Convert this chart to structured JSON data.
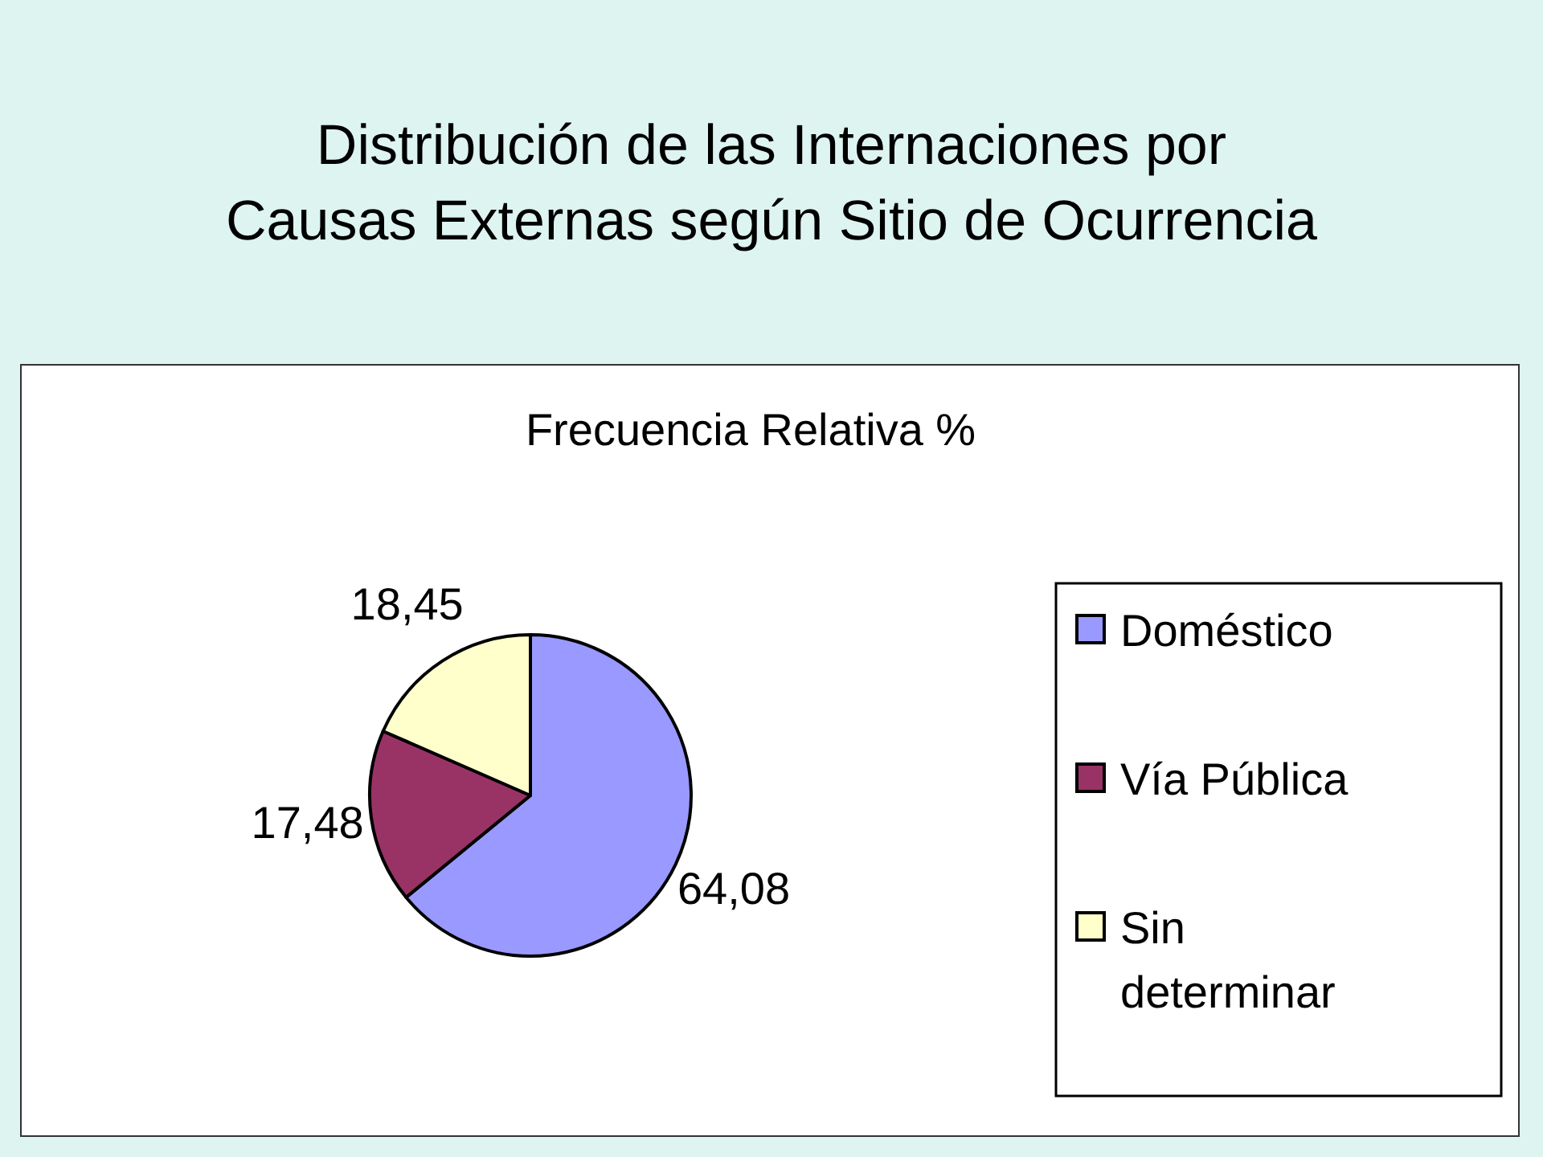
{
  "chart_data": {
    "type": "pie",
    "title": "Distribución de las Internaciones por\nCausas Externas según Sitio de Ocurrencia",
    "subtitle": "Frecuencia Relativa %",
    "categories": [
      "Doméstico",
      "Vía Pública",
      "Sin determinar"
    ],
    "values": [
      64.08,
      17.48,
      18.45
    ],
    "colors": [
      "#9999ff",
      "#993366",
      "#ffffcc"
    ],
    "value_labels": [
      "64,08",
      "17,48",
      "18,45"
    ],
    "legend": "right"
  }
}
